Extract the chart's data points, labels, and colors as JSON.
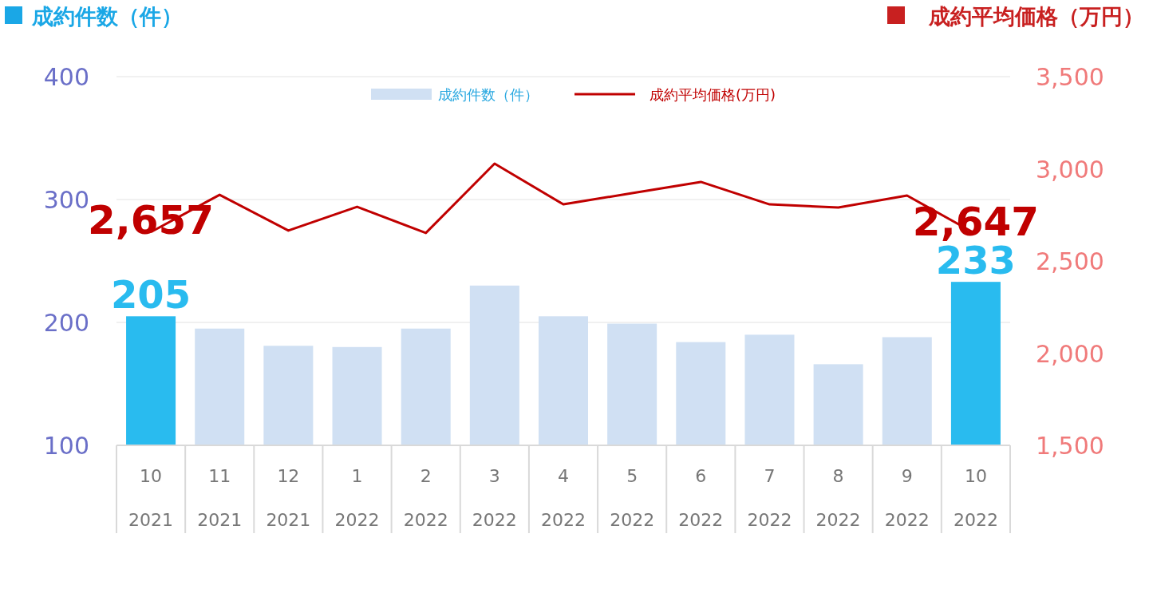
{
  "chart_data": {
    "type": "bar",
    "ylabel": "成約件数（件）",
    "y2label": "成約平均価格（万円）",
    "categories": [
      "10\n2021",
      "11\n2021",
      "12\n2021",
      "1\n2022",
      "2\n2022",
      "3\n2022",
      "4\n2022",
      "5\n2022",
      "6\n2022",
      "7\n2022",
      "8\n2022",
      "9\n2022",
      "10\n2022"
    ],
    "series": [
      {
        "name": "成約件数（件）",
        "color": "#d0e0f3",
        "colors": [
          "#29bbef",
          "#d0e0f3",
          "#d0e0f3",
          "#d0e0f3",
          "#d0e0f3",
          "#d0e0f3",
          "#d0e0f3",
          "#d0e0f3",
          "#d0e0f3",
          "#d0e0f3",
          "#d0e0f3",
          "#d0e0f3",
          "#29bbef"
        ],
        "values": [
          205,
          195,
          181,
          180,
          195,
          230,
          205,
          199,
          184,
          190,
          166,
          188,
          233
        ],
        "value_labels": [
          "205",
          null,
          null,
          null,
          null,
          null,
          null,
          null,
          null,
          null,
          null,
          null,
          "233"
        ]
      },
      {
        "name": "成約平均価格(万円)",
        "type": "line",
        "axis": "y2",
        "color": "#c00000",
        "values": [
          2657,
          2859,
          2665,
          2794,
          2652,
          3028,
          2807,
          2868,
          2929,
          2807,
          2790,
          2855,
          2647
        ],
        "value_labels": [
          "2,657",
          null,
          null,
          null,
          null,
          null,
          null,
          null,
          null,
          null,
          null,
          null,
          "2,647"
        ]
      }
    ],
    "ylim": [
      100,
      400
    ],
    "yticks": [
      100,
      200,
      300,
      400
    ],
    "y2lim": [
      1500,
      3500
    ],
    "y2ticks": [
      {
        "value": 1500,
        "label": "1,500"
      },
      {
        "value": 2000,
        "label": "2,000"
      },
      {
        "value": 2500,
        "label": "2,500"
      },
      {
        "value": 3000,
        "label": "3,000"
      },
      {
        "value": 3500,
        "label": "3,500"
      }
    ],
    "grid": "y",
    "legend": "top",
    "marker": "none",
    "line_style": "solid"
  }
}
